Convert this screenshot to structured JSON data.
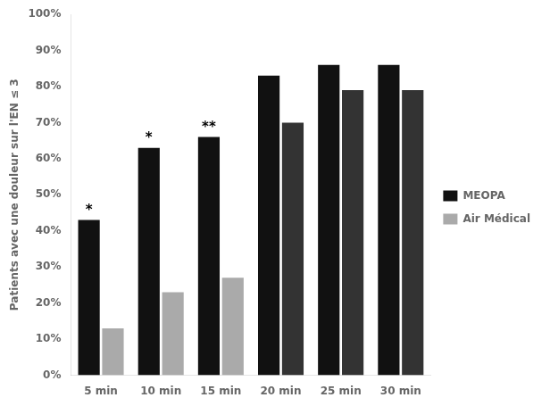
{
  "chart_data": {
    "type": "bar",
    "categories": [
      "5 min",
      "10 min",
      "15 min",
      "20 min",
      "25 min",
      "30 min"
    ],
    "series": [
      {
        "name": "MEOPA",
        "color": "#111111",
        "values": [
          43,
          63,
          66,
          83,
          86,
          86
        ]
      },
      {
        "name": "Air Médical",
        "colors": [
          "#aaaaaa",
          "#aaaaaa",
          "#aaaaaa",
          "#333333",
          "#333333",
          "#333333"
        ],
        "values": [
          13,
          23,
          27,
          70,
          79,
          79
        ]
      }
    ],
    "ylabel": "Patients avec une douleur sur l'EN ≤ 3",
    "ylim": [
      0,
      100
    ],
    "yticks": [
      {
        "value": 0,
        "label": "0%"
      },
      {
        "value": 10,
        "label": "10%"
      },
      {
        "value": 20,
        "label": "20%"
      },
      {
        "value": 30,
        "label": "30%"
      },
      {
        "value": 40,
        "label": "40%"
      },
      {
        "value": 50,
        "label": "50%"
      },
      {
        "value": 60,
        "label": "60%"
      },
      {
        "value": 70,
        "label": "70%"
      },
      {
        "value": 80,
        "label": "80%"
      },
      {
        "value": 90,
        "label": "90%"
      },
      {
        "value": 100,
        "label": "100%"
      }
    ],
    "grid": false,
    "legend": "right",
    "annotations": [
      {
        "x": "5 min",
        "series": "MEOPA",
        "text": "*"
      },
      {
        "x": "10 min",
        "series": "MEOPA",
        "text": "*"
      },
      {
        "x": "15 min",
        "series": "MEOPA",
        "text": "**"
      }
    ]
  }
}
